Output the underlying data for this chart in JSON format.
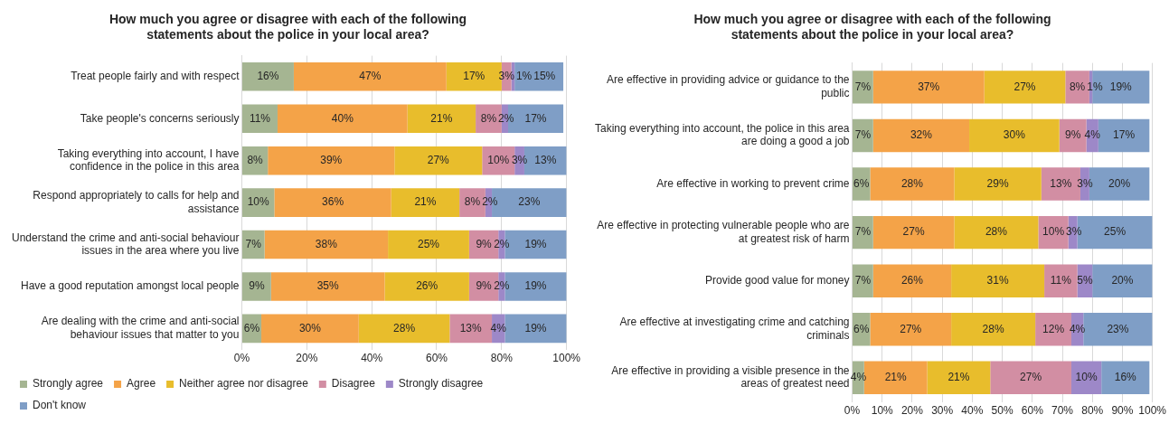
{
  "chart_data": [
    {
      "type": "bar",
      "orientation": "horizontal",
      "stacked": true,
      "title": "How much you agree or disagree with each of the following statements about the police in your local area?",
      "categories": [
        "Treat people fairly and with respect",
        "Take people's concerns seriously",
        "Taking everything into account, I have confidence in the police in this area",
        "Respond appropriately to calls for help and assistance",
        "Understand the crime and anti-social behaviour issues in the area where you live",
        "Have a good reputation amongst local people",
        "Are dealing with the crime and anti-social behaviour issues that matter to you"
      ],
      "series": [
        {
          "name": "Strongly agree",
          "color": "#a5b592",
          "values": [
            16,
            11,
            8,
            10,
            7,
            9,
            6
          ],
          "value_labels": [
            "16%",
            "11%",
            "8%",
            "10%",
            "7%",
            "9%",
            "6%"
          ]
        },
        {
          "name": "Agree",
          "color": "#f4a348",
          "values": [
            47,
            40,
            39,
            36,
            38,
            35,
            30
          ],
          "value_labels": [
            "47%",
            "40%",
            "39%",
            "36%",
            "38%",
            "35%",
            "30%"
          ]
        },
        {
          "name": "Neither agree nor disagree",
          "color": "#e8bd2c",
          "values": [
            17,
            21,
            27,
            21,
            25,
            26,
            28
          ],
          "value_labels": [
            "17%",
            "21%",
            "27%",
            "21%",
            "25%",
            "26%",
            "28%"
          ]
        },
        {
          "name": "Disagree",
          "color": "#d28ea3",
          "values": [
            3,
            8,
            10,
            8,
            9,
            9,
            13
          ],
          "value_labels": [
            "3%",
            "8%",
            "10%",
            "8%",
            "9%",
            "9%",
            "13%"
          ]
        },
        {
          "name": "Strongly disagree",
          "color": "#9d88c8",
          "values": [
            1,
            2,
            3,
            2,
            2,
            2,
            4
          ],
          "value_labels": [
            "1%",
            "2%",
            "3%",
            "2%",
            "2%",
            "2%",
            "4%"
          ]
        },
        {
          "name": "Don't know",
          "color": "#7f9ec6",
          "values": [
            15,
            17,
            13,
            23,
            19,
            19,
            19
          ],
          "value_labels": [
            "15%",
            "17%",
            "13%",
            "23%",
            "19%",
            "19%",
            "19%"
          ]
        }
      ],
      "xlim": [
        0,
        100
      ],
      "xticks": [
        {
          "value": 0,
          "label": "0%"
        },
        {
          "value": 20,
          "label": "20%"
        },
        {
          "value": 40,
          "label": "40%"
        },
        {
          "value": 60,
          "label": "60%"
        },
        {
          "value": 80,
          "label": "80%"
        },
        {
          "value": 100,
          "label": "100%"
        }
      ],
      "grid": "x",
      "legend": "bottom"
    },
    {
      "type": "bar",
      "orientation": "horizontal",
      "stacked": true,
      "title": "How much you agree or disagree with each of the following statements about the police in your local area?",
      "categories": [
        "Are effective in providing advice or guidance to the public",
        "Taking everything into account, the police in this area are doing a good a job",
        "Are effective in working to prevent crime",
        "Are effective in protecting vulnerable people who are at greatest risk of harm",
        "Provide good value for money",
        "Are effective at investigating crime and catching criminals",
        "Are effective in providing a visible presence in the areas of greatest need"
      ],
      "series": [
        {
          "color": "#a5b592",
          "values": [
            7,
            7,
            6,
            7,
            7,
            6,
            4
          ],
          "value_labels": [
            "7%",
            "7%",
            "6%",
            "7%",
            "7%",
            "6%",
            "4%"
          ]
        },
        {
          "color": "#f4a348",
          "values": [
            37,
            32,
            28,
            27,
            26,
            27,
            21
          ],
          "value_labels": [
            "37%",
            "32%",
            "28%",
            "27%",
            "26%",
            "27%",
            "21%"
          ]
        },
        {
          "color": "#e8bd2c",
          "values": [
            27,
            30,
            29,
            28,
            31,
            28,
            21
          ],
          "value_labels": [
            "27%",
            "30%",
            "29%",
            "28%",
            "31%",
            "28%",
            "21%"
          ]
        },
        {
          "color": "#d28ea3",
          "values": [
            8,
            9,
            13,
            10,
            11,
            12,
            27
          ],
          "value_labels": [
            "8%",
            "9%",
            "13%",
            "10%",
            "11%",
            "12%",
            "27%"
          ]
        },
        {
          "color": "#9d88c8",
          "values": [
            1,
            4,
            3,
            3,
            5,
            4,
            10
          ],
          "value_labels": [
            "1%",
            "4%",
            "3%",
            "3%",
            "5%",
            "4%",
            "10%"
          ]
        },
        {
          "color": "#7f9ec6",
          "values": [
            19,
            17,
            20,
            25,
            20,
            23,
            16
          ],
          "value_labels": [
            "19%",
            "17%",
            "20%",
            "25%",
            "20%",
            "23%",
            "16%"
          ]
        }
      ],
      "xlim": [
        0,
        100
      ],
      "xticks": [
        {
          "value": 0,
          "label": "0%"
        },
        {
          "value": 10,
          "label": "10%"
        },
        {
          "value": 20,
          "label": "20%"
        },
        {
          "value": 30,
          "label": "30%"
        },
        {
          "value": 40,
          "label": "40%"
        },
        {
          "value": 50,
          "label": "50%"
        },
        {
          "value": 60,
          "label": "60%"
        },
        {
          "value": 70,
          "label": "70%"
        },
        {
          "value": 80,
          "label": "80%"
        },
        {
          "value": 90,
          "label": "90%"
        },
        {
          "value": 100,
          "label": "100%"
        }
      ],
      "grid": "x"
    }
  ]
}
